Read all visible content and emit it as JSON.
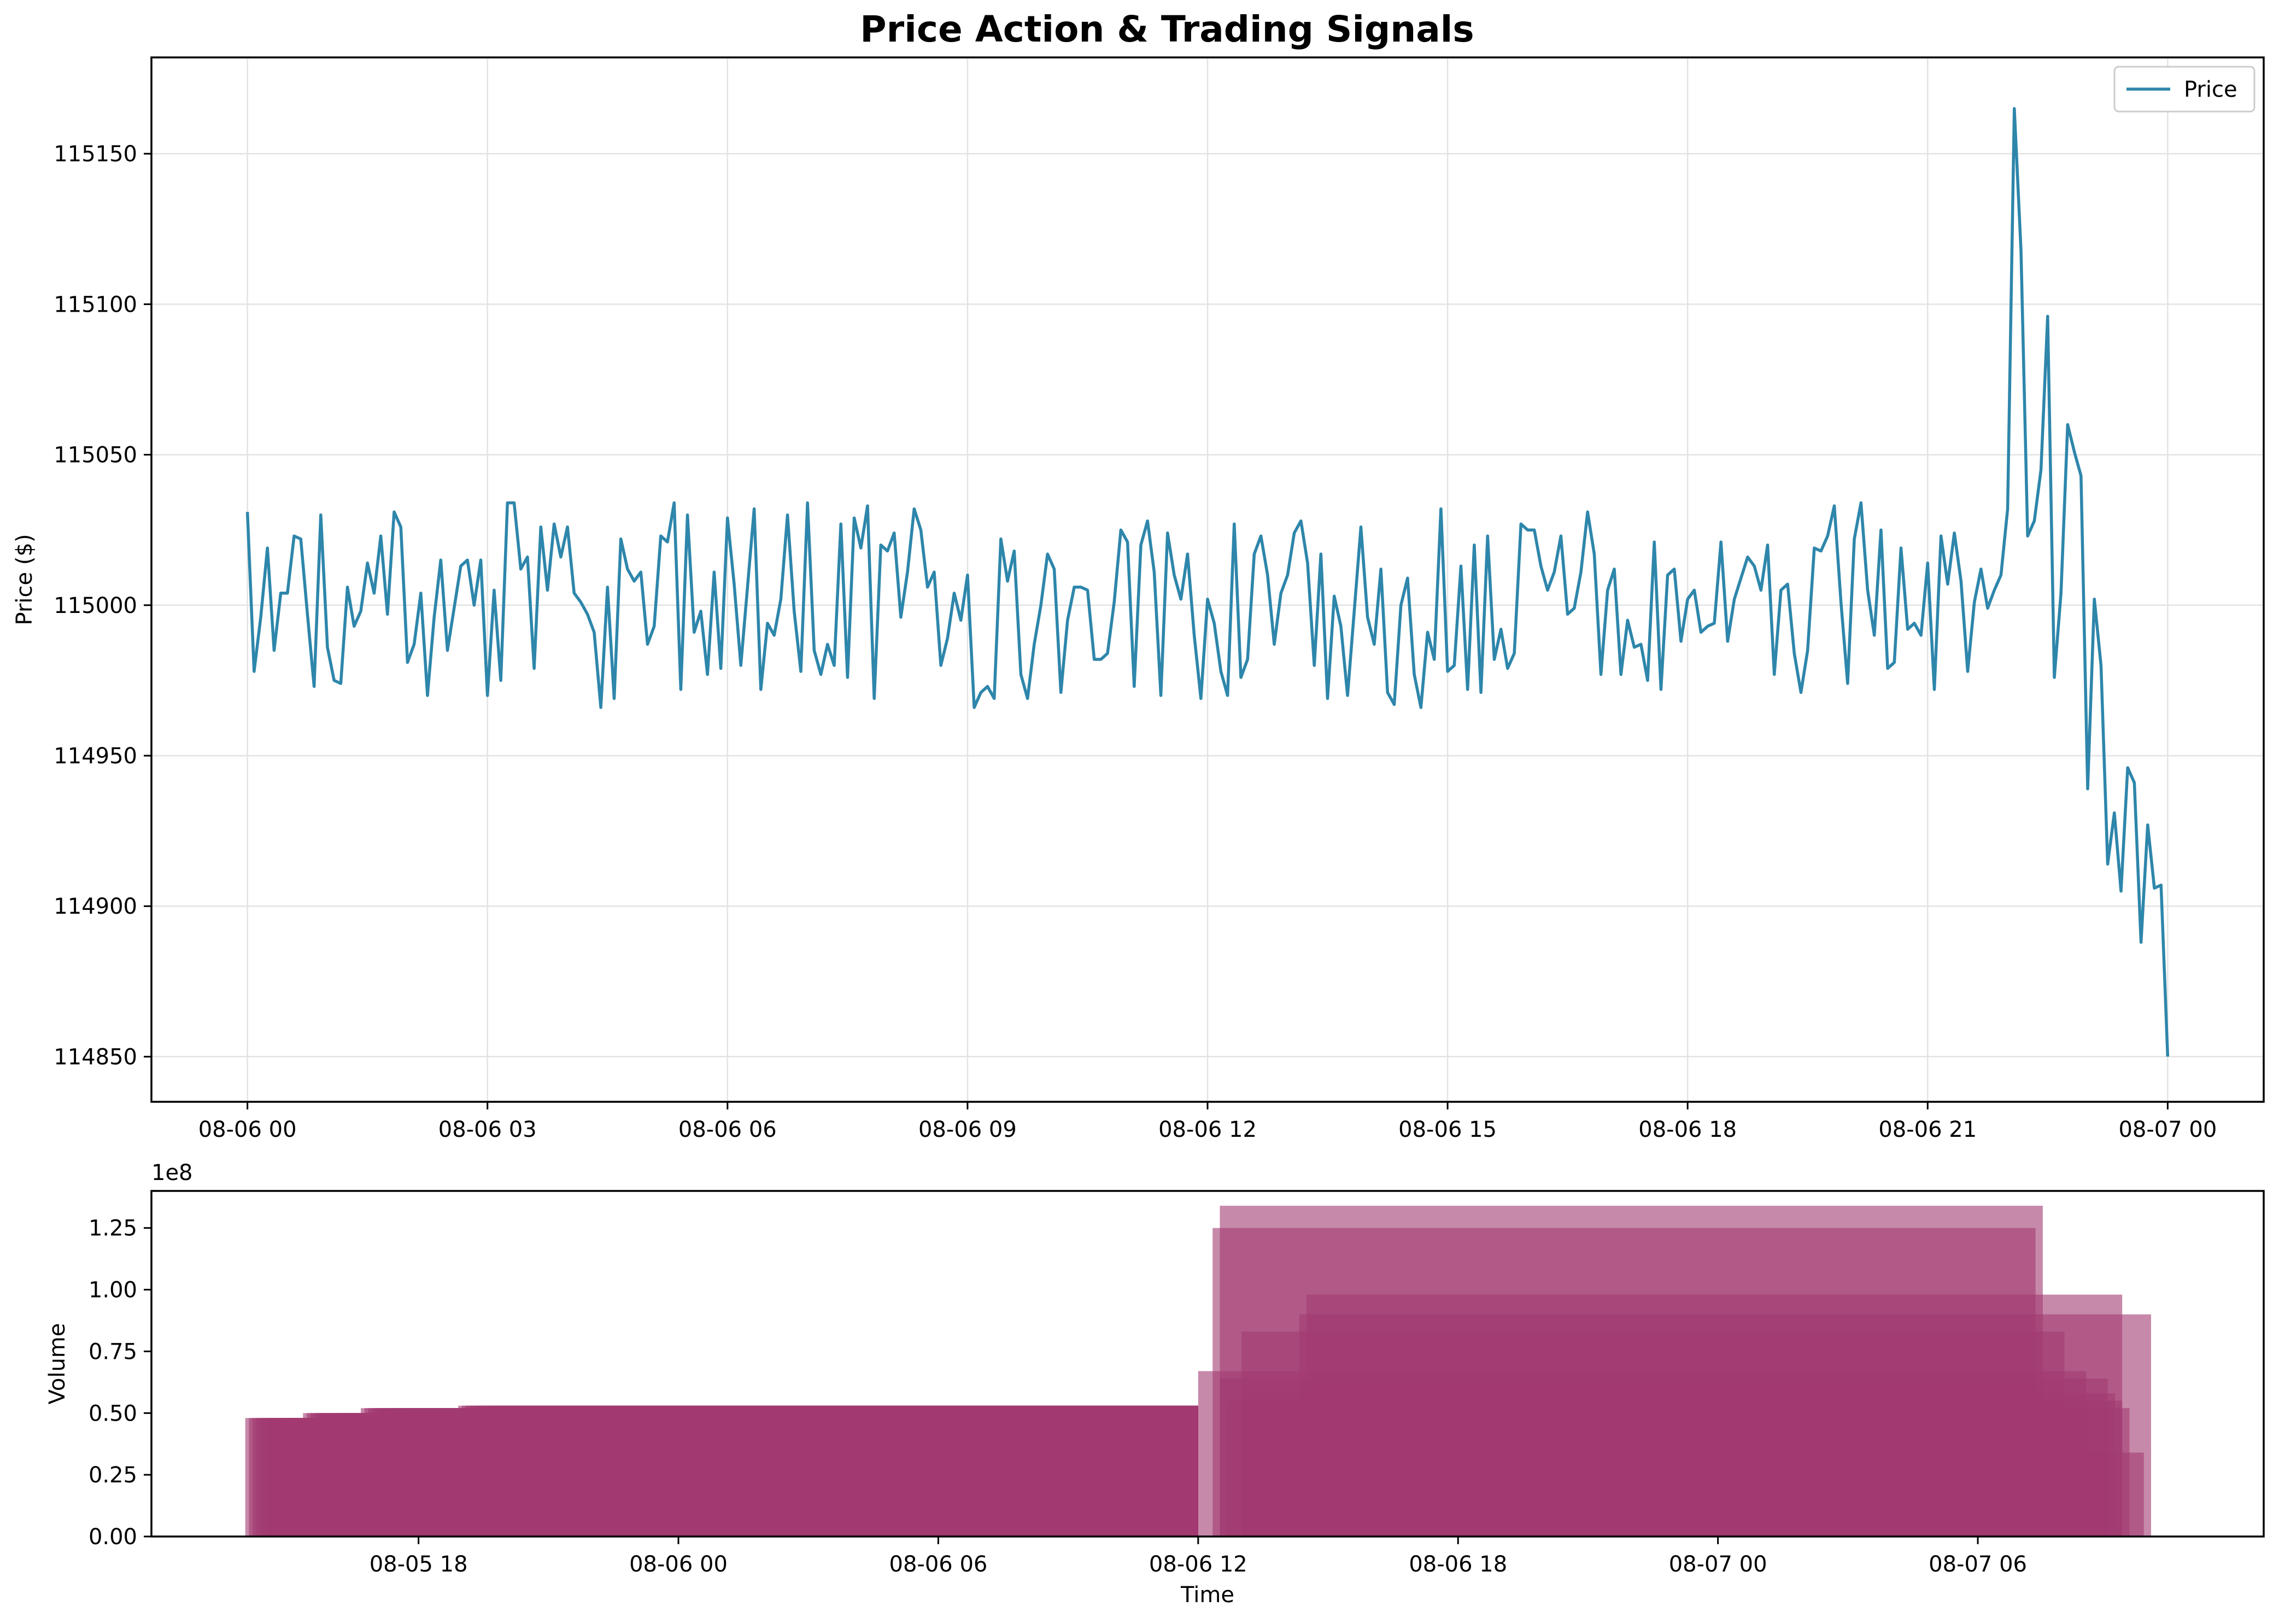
{
  "figure": {
    "background": "#ffffff"
  },
  "chart_data": [
    {
      "type": "line",
      "title": "Price Action & Trading Signals",
      "xlabel": "",
      "ylabel": "Price ($)",
      "x_type": "datetime",
      "x_start": "2024-08-06 00:00",
      "x_end": "2024-08-07 00:00",
      "xlim": [
        "2024-08-05 22:48",
        "2024-08-07 01:12"
      ],
      "ylim": [
        114835,
        115182
      ],
      "xticks": [
        {
          "t": "2024-08-06 00:00",
          "label": "08-06 00"
        },
        {
          "t": "2024-08-06 03:00",
          "label": "08-06 03"
        },
        {
          "t": "2024-08-06 06:00",
          "label": "08-06 06"
        },
        {
          "t": "2024-08-06 09:00",
          "label": "08-06 09"
        },
        {
          "t": "2024-08-06 12:00",
          "label": "08-06 12"
        },
        {
          "t": "2024-08-06 15:00",
          "label": "08-06 15"
        },
        {
          "t": "2024-08-06 18:00",
          "label": "08-06 18"
        },
        {
          "t": "2024-08-06 21:00",
          "label": "08-06 21"
        },
        {
          "t": "2024-08-07 00:00",
          "label": "08-07 00"
        }
      ],
      "yticks": [
        114850,
        114900,
        114950,
        115000,
        115050,
        115100,
        115150
      ],
      "grid": true,
      "legend": {
        "position": "top-right",
        "entries": [
          "Price"
        ]
      },
      "series": [
        {
          "name": "Price",
          "color": "#2e86ab",
          "values": [
            115031,
            114978,
            114996,
            115019,
            114985,
            115004,
            115004,
            115023,
            115022,
            114997,
            114973,
            115030,
            114986,
            114975,
            114974,
            115006,
            114993,
            114998,
            115014,
            115004,
            115023,
            114997,
            115031,
            115026,
            114981,
            114987,
            115004,
            114970,
            114996,
            115015,
            114985,
            114999,
            115013,
            115015,
            115000,
            115015,
            114970,
            115005,
            114975,
            115034,
            115034,
            115012,
            115016,
            114979,
            115026,
            115005,
            115027,
            115016,
            115026,
            115004,
            115001,
            114997,
            114991,
            114966,
            115006,
            114969,
            115022,
            115012,
            115008,
            115011,
            114987,
            114993,
            115023,
            115021,
            115034,
            114972,
            115030,
            114991,
            114998,
            114977,
            115011,
            114979,
            115029,
            115007,
            114980,
            115006,
            115032,
            114972,
            114994,
            114990,
            115002,
            115030,
            114998,
            114978,
            115034,
            114985,
            114977,
            114987,
            114980,
            115027,
            114976,
            115029,
            115019,
            115033,
            114969,
            115020,
            115018,
            115024,
            114996,
            115011,
            115032,
            115025,
            115006,
            115011,
            114980,
            114989,
            115004,
            114995,
            115010,
            114966,
            114971,
            114973,
            114969,
            115022,
            115008,
            115018,
            114977,
            114969,
            114987,
            115000,
            115017,
            115012,
            114971,
            114995,
            115006,
            115006,
            115005,
            114982,
            114982,
            114984,
            115001,
            115025,
            115021,
            114973,
            115020,
            115028,
            115011,
            114970,
            115024,
            115010,
            115002,
            115017,
            114990,
            114969,
            115002,
            114994,
            114978,
            114970,
            115027,
            114976,
            114982,
            115017,
            115023,
            115010,
            114987,
            115004,
            115010,
            115024,
            115028,
            115014,
            114980,
            115017,
            114969,
            115003,
            114993,
            114970,
            114998,
            115026,
            114996,
            114987,
            115012,
            114971,
            114967,
            115000,
            115009,
            114977,
            114966,
            114991,
            114982,
            115032,
            114978,
            114980,
            115013,
            114972,
            115020,
            114971,
            115023,
            114982,
            114992,
            114979,
            114984,
            115027,
            115025,
            115025,
            115013,
            115005,
            115011,
            115023,
            114997,
            114999,
            115011,
            115031,
            115017,
            114977,
            115005,
            115012,
            114977,
            114995,
            114986,
            114987,
            114975,
            115021,
            114972,
            115010,
            115012,
            114988,
            115002,
            115005,
            114991,
            114993,
            114994,
            115021,
            114988,
            115002,
            115009,
            115016,
            115013,
            115005,
            115020,
            114977,
            115005,
            115007,
            114984,
            114971,
            114985,
            115019,
            115018,
            115023,
            115033,
            115001,
            114974,
            115022,
            115034,
            115005,
            114990,
            115025,
            114979,
            114981,
            115019,
            114992,
            114994,
            114990,
            115014,
            114972,
            115023,
            115007,
            115024,
            115008,
            114978,
            115001,
            115012,
            114999,
            115005,
            115010,
            115032,
            115165,
            115118,
            115023,
            115028,
            115045,
            115096,
            114976,
            115004,
            115060,
            115051,
            115043,
            114939,
            115002,
            114980,
            114914,
            114931,
            114905,
            114946,
            114941,
            114888,
            114927,
            114906,
            114907,
            114850
          ]
        }
      ]
    },
    {
      "type": "bar",
      "title": "",
      "xlabel": "Time",
      "ylabel": "Volume",
      "y_offset_label": "1e8",
      "x_type": "datetime",
      "xlim": [
        "2024-08-05 11:50",
        "2024-08-07 12:36"
      ],
      "ylim": [
        0,
        1.4
      ],
      "xticks": [
        {
          "t": "2024-08-05 18:00",
          "label": "08-05 18"
        },
        {
          "t": "2024-08-06 00:00",
          "label": "08-06 00"
        },
        {
          "t": "2024-08-06 06:00",
          "label": "08-06 06"
        },
        {
          "t": "2024-08-06 12:00",
          "label": "08-06 12"
        },
        {
          "t": "2024-08-06 18:00",
          "label": "08-06 18"
        },
        {
          "t": "2024-08-07 00:00",
          "label": "08-07 00"
        },
        {
          "t": "2024-08-07 06:00",
          "label": "08-07 06"
        }
      ],
      "yticks": [
        0.0,
        0.25,
        0.5,
        0.75,
        1.0,
        1.25
      ],
      "ytick_labels": [
        "0.00",
        "0.25",
        "0.50",
        "0.75",
        "1.00",
        "1.25"
      ],
      "grid": false,
      "bars": {
        "color": "#a23b72",
        "opacity": 0.6,
        "pre_start": "2024-08-05 14:00",
        "pre_end": "2024-08-06 12:00",
        "pre_count": 264,
        "pre_levels": [
          [
            0,
            0.48
          ],
          [
            0.06,
            0.5
          ],
          [
            0.12,
            0.52
          ],
          [
            0.22,
            0.53
          ],
          [
            1.0,
            0.535
          ]
        ],
        "pre_width_hours": 2,
        "upper": [
          {
            "start": "2024-08-06 12:30",
            "end": "2024-08-07 07:30",
            "value": 1.34
          },
          {
            "start": "2024-08-06 12:20",
            "end": "2024-08-07 07:20",
            "value": 1.25
          },
          {
            "start": "2024-08-06 14:30",
            "end": "2024-08-07 09:20",
            "value": 0.98
          },
          {
            "start": "2024-08-06 14:20",
            "end": "2024-08-07 10:00",
            "value": 0.9
          },
          {
            "start": "2024-08-06 13:00",
            "end": "2024-08-07 08:00",
            "value": 0.83
          },
          {
            "start": "2024-08-06 12:00",
            "end": "2024-08-07 08:30",
            "value": 0.67
          },
          {
            "start": "2024-08-06 12:30",
            "end": "2024-08-07 09:00",
            "value": 0.64
          },
          {
            "start": "2024-08-06 13:00",
            "end": "2024-08-07 09:10",
            "value": 0.58
          },
          {
            "start": "2024-08-06 12:40",
            "end": "2024-08-07 09:20",
            "value": 0.55
          },
          {
            "start": "2024-08-06 13:20",
            "end": "2024-08-07 09:30",
            "value": 0.52
          },
          {
            "start": "2024-08-06 13:40",
            "end": "2024-08-07 09:50",
            "value": 0.34
          }
        ]
      }
    }
  ]
}
